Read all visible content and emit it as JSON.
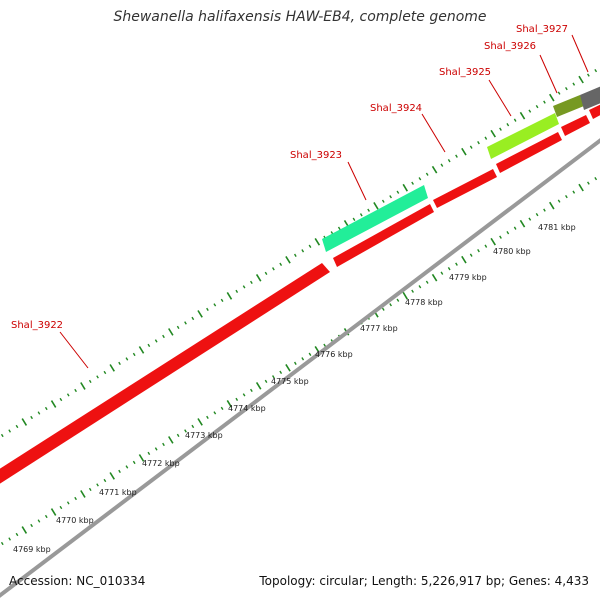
{
  "title": "Shewanella halifaxensis HAW-EB4, complete genome",
  "footer": {
    "accession": "Accession: NC_010334",
    "summary": "Topology: circular; Length: 5,226,917 bp; Genes: 4,433"
  },
  "colors": {
    "cds": "#ee1111",
    "backbone": "#999999",
    "ticks": "#228822",
    "gene_label": "#cc0000",
    "gene_3923": "#22ee99",
    "gene_3925": "#99ee22",
    "gene_3926": "#779922",
    "gene_3927": "#666666"
  },
  "scale_labels": [
    "4769 kbp",
    "4770 kbp",
    "4771 kbp",
    "4772 kbp",
    "4773 kbp",
    "4774 kbp",
    "4775 kbp",
    "4776 kbp",
    "4777 kbp",
    "4778 kbp",
    "4779 kbp",
    "4780 kbp",
    "4781 kbp"
  ],
  "genes": [
    {
      "name": "Shal_3922",
      "color_key": "cds",
      "track": "outer"
    },
    {
      "name": "Shal_3923",
      "color_key": "gene_3923",
      "track": "top"
    },
    {
      "name": "Shal_3924",
      "color_key": "cds",
      "track": "outer"
    },
    {
      "name": "Shal_3925",
      "color_key": "gene_3925",
      "track": "top"
    },
    {
      "name": "Shal_3926",
      "color_key": "gene_3926",
      "track": "top"
    },
    {
      "name": "Shal_3927",
      "color_key": "gene_3927",
      "track": "top"
    }
  ]
}
